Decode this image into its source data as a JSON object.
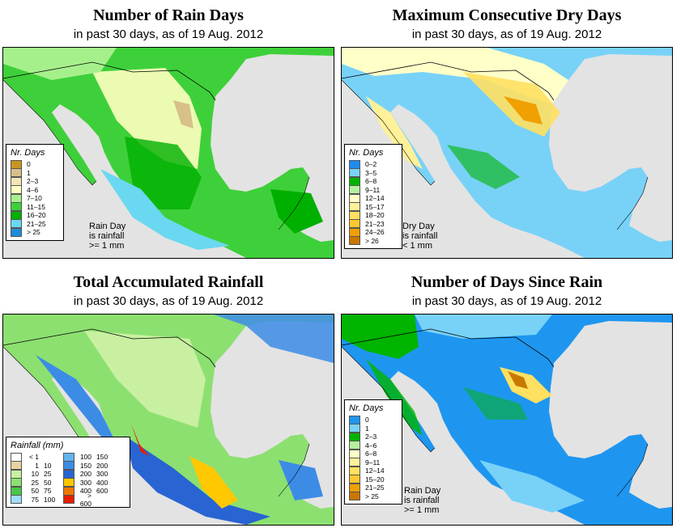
{
  "panels": [
    {
      "title": "Number of Rain Days",
      "subtitle": "in past 30 days, as of  19 Aug. 2012",
      "legend_title": "Nr. Days",
      "legend": [
        {
          "label": "0",
          "color": "#c8961e"
        },
        {
          "label": "1",
          "color": "#d8c08a"
        },
        {
          "label": "2–3",
          "color": "#f2e6b8"
        },
        {
          "label": "4–6",
          "color": "#ffffc0"
        },
        {
          "label": "7–10",
          "color": "#a6f08c"
        },
        {
          "label": "11–15",
          "color": "#3ed03a"
        },
        {
          "label": "16–20",
          "color": "#00b000"
        },
        {
          "label": "21–25",
          "color": "#6ad8f0"
        },
        {
          "label": "> 25",
          "color": "#1e8cd8"
        }
      ],
      "note": "Rain Day\nis rainfall\n>= 1 mm"
    },
    {
      "title": "Maximum Consecutive Dry Days",
      "subtitle": "in past 30 days, as of  19 Aug. 2012",
      "legend_title": "Nr. Days",
      "legend": [
        {
          "label": "0–2",
          "color": "#1e8cf0"
        },
        {
          "label": "3–5",
          "color": "#78d2f8"
        },
        {
          "label": "6–8",
          "color": "#00b400"
        },
        {
          "label": "9–11",
          "color": "#b4f0a0"
        },
        {
          "label": "12–14",
          "color": "#ffffc8"
        },
        {
          "label": "15–17",
          "color": "#fff09a"
        },
        {
          "label": "18–20",
          "color": "#ffe060"
        },
        {
          "label": "21–23",
          "color": "#ffc832"
        },
        {
          "label": "24–26",
          "color": "#f0a000"
        },
        {
          "label": "> 26",
          "color": "#c87800"
        }
      ],
      "note": "Dry Day\nis rainfall\n< 1 mm"
    },
    {
      "title": "Total Accumulated Rainfall",
      "subtitle": "in past 30 days, as of  19 Aug. 2012",
      "legend_title": "Rainfall (mm)",
      "legend_left": [
        {
          "lo": "< 1",
          "hi": "",
          "color": "#ffffff"
        },
        {
          "lo": "1",
          "hi": "10",
          "color": "#e6d2a0"
        },
        {
          "lo": "10",
          "hi": "25",
          "color": "#c8f0a0"
        },
        {
          "lo": "25",
          "hi": "50",
          "color": "#8ce070"
        },
        {
          "lo": "50",
          "hi": "75",
          "color": "#46c846"
        },
        {
          "lo": "75",
          "hi": "100",
          "color": "#a0dcf8"
        }
      ],
      "legend_right": [
        {
          "lo": "100",
          "hi": "150",
          "color": "#64b4f0"
        },
        {
          "lo": "150",
          "hi": "200",
          "color": "#3c8ce6"
        },
        {
          "lo": "200",
          "hi": "300",
          "color": "#2864d2"
        },
        {
          "lo": "300",
          "hi": "400",
          "color": "#ffc800"
        },
        {
          "lo": "400",
          "hi": "600",
          "color": "#f07800"
        },
        {
          "lo": "> 600",
          "hi": "",
          "color": "#e61e00"
        }
      ]
    },
    {
      "title": "Number of Days Since Rain",
      "subtitle": "in past 30 days, as of  19 Aug. 2012",
      "legend_title": "Nr. Days",
      "legend": [
        {
          "label": "0",
          "color": "#1e96f0"
        },
        {
          "label": "1",
          "color": "#78d2f8"
        },
        {
          "label": "2–3",
          "color": "#00b400"
        },
        {
          "label": "4–6",
          "color": "#b4f0a0"
        },
        {
          "label": "6–8",
          "color": "#ffffc8"
        },
        {
          "label": "9–11",
          "color": "#fff09a"
        },
        {
          "label": "12–14",
          "color": "#ffe060"
        },
        {
          "label": "15–20",
          "color": "#ffc832"
        },
        {
          "label": "21–25",
          "color": "#f0a000"
        },
        {
          "label": "> 25",
          "color": "#c87800"
        }
      ],
      "note": "Rain Day\nis rainfall\n>= 1 mm"
    }
  ],
  "colors": {
    "ocean": "#e3e3e3",
    "border": "#000000"
  }
}
